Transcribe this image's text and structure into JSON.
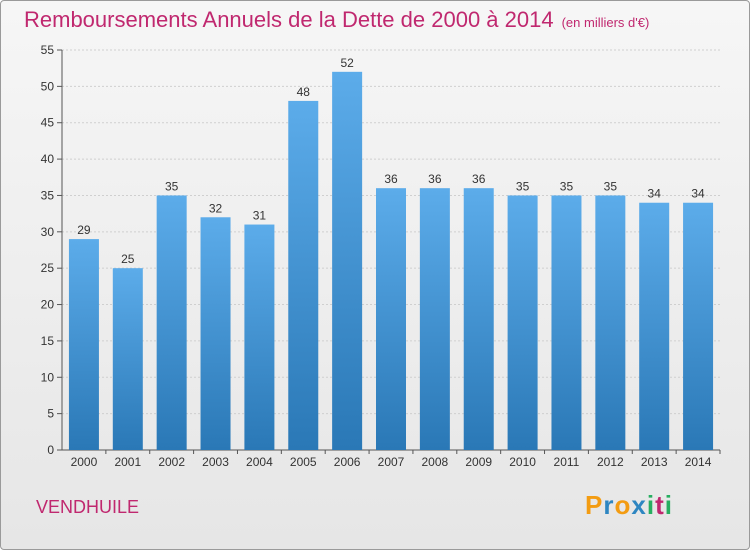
{
  "title": "Remboursements Annuels de la Dette de 2000 à 2014",
  "unit": "(en milliers d'€)",
  "commune": "VENDHUILE",
  "logo": {
    "letters": [
      "P",
      "r",
      "o",
      "x",
      "i",
      "t",
      "i"
    ],
    "colors": [
      "#f39c12",
      "#2e86c1",
      "#f39c12",
      "#2e86c1",
      "#27ae60",
      "#c0286f",
      "#27ae60"
    ]
  },
  "colors": {
    "bar_top": "#5cacea",
    "bar_bottom": "#2a78b6",
    "title": "#c0286f",
    "grid": "#cfcfcf"
  },
  "chart_data": {
    "type": "bar",
    "categories": [
      "2000",
      "2001",
      "2002",
      "2003",
      "2004",
      "2005",
      "2006",
      "2007",
      "2008",
      "2009",
      "2010",
      "2011",
      "2012",
      "2013",
      "2014"
    ],
    "values": [
      29,
      25,
      35,
      32,
      31,
      48,
      52,
      36,
      36,
      36,
      35,
      35,
      35,
      34,
      34
    ],
    "ylim": [
      0,
      55
    ],
    "yticks": [
      0,
      5,
      10,
      15,
      20,
      25,
      30,
      35,
      40,
      45,
      50,
      55
    ],
    "grid": true
  }
}
